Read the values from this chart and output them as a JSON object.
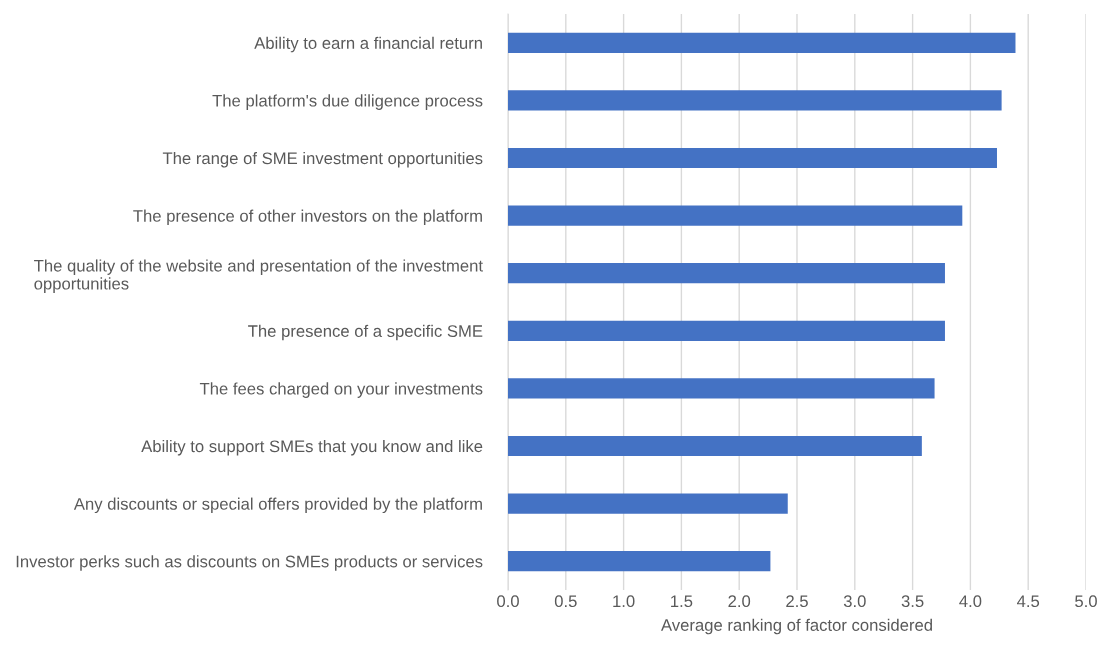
{
  "chart_data": {
    "type": "bar",
    "orientation": "horizontal",
    "xlabel": "Average ranking of factor considered",
    "categories": [
      "Ability to earn a financial return",
      "The platform's due diligence process",
      "The range of SME investment opportunities",
      "The presence of other investors on the platform",
      "The quality of the website and presentation of the investment\nopportunities",
      "The presence of a specific SME",
      "The fees charged on your investments",
      "Ability to support SMEs that you know and like",
      "Any discounts or special offers provided by the platform",
      "Investor perks such as discounts on SMEs products or services"
    ],
    "values": [
      4.39,
      4.27,
      4.23,
      3.93,
      3.78,
      3.78,
      3.69,
      3.58,
      2.42,
      2.27
    ],
    "color": "#4472c4",
    "xlim": [
      0,
      5
    ],
    "xticks": [
      {
        "value": 0,
        "label": "0.0"
      },
      {
        "value": 0.5,
        "label": "0.5"
      },
      {
        "value": 1,
        "label": "1.0"
      },
      {
        "value": 1.5,
        "label": "1.5"
      },
      {
        "value": 2,
        "label": "2.0"
      },
      {
        "value": 2.5,
        "label": "2.5"
      },
      {
        "value": 3,
        "label": "3.0"
      },
      {
        "value": 3.5,
        "label": "3.5"
      },
      {
        "value": 4,
        "label": "4.0"
      },
      {
        "value": 4.5,
        "label": "4.5"
      },
      {
        "value": 5,
        "label": "5.0"
      }
    ],
    "grid": "x"
  }
}
